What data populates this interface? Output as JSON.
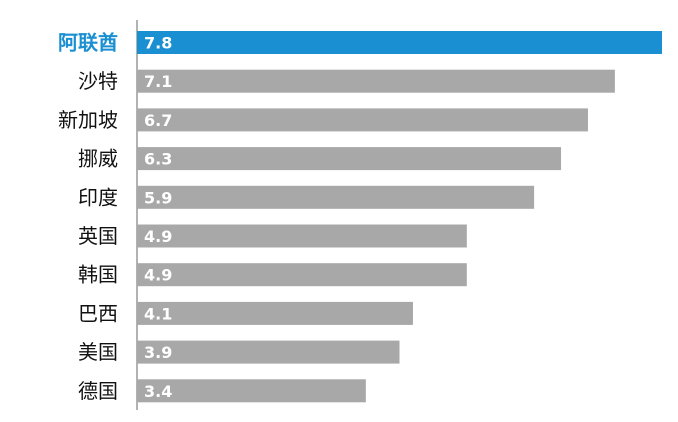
{
  "chart_data": {
    "type": "bar",
    "orientation": "horizontal",
    "categories": [
      "阿联酋",
      "沙特",
      "新加坡",
      "挪威",
      "印度",
      "英国",
      "韩国",
      "巴西",
      "美国",
      "德国"
    ],
    "values": [
      7.8,
      7.1,
      6.7,
      6.3,
      5.9,
      4.9,
      4.9,
      4.1,
      3.9,
      3.4
    ],
    "value_labels": [
      "7.8",
      "7.1",
      "6.7",
      "6.3",
      "5.9",
      "4.9",
      "4.9",
      "4.1",
      "3.9",
      "3.4"
    ],
    "highlight_index": 0,
    "highlight_color": "#1a8fd1",
    "bar_color": "#a8a8a8",
    "highlight_label_color": "#1a8fd1",
    "label_color": "#111111",
    "axis_color": "#999999",
    "grid": false,
    "legend": false,
    "xlim": [
      0,
      7.8
    ],
    "title": "",
    "xlabel": "",
    "ylabel": ""
  }
}
